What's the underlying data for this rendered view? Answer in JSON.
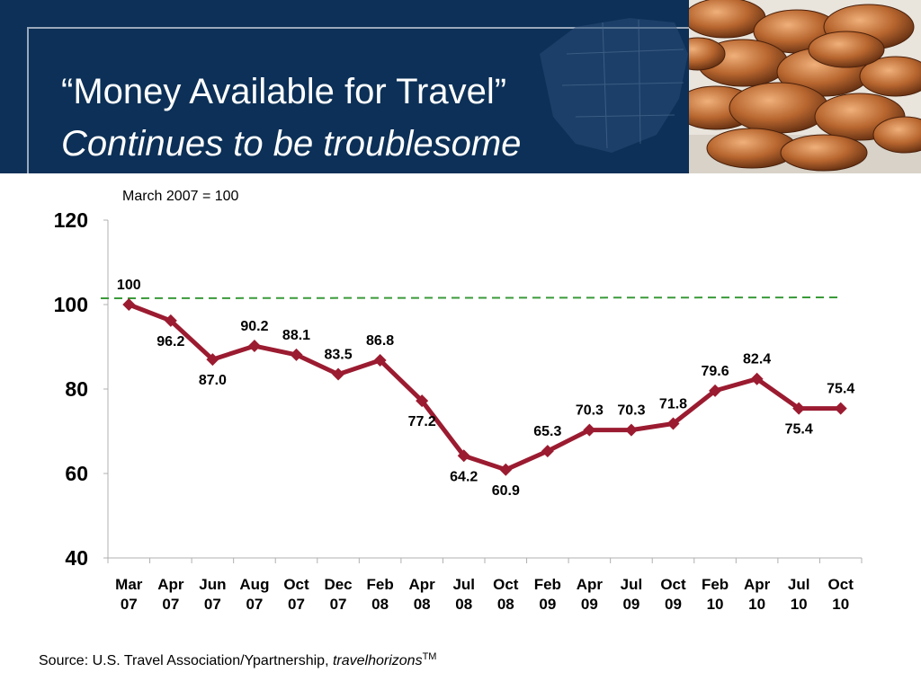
{
  "header": {
    "title_line1": "“Money Available for Travel”",
    "title_line2": "Continues to be troublesome"
  },
  "chart_data": {
    "type": "line",
    "note": "March 2007 = 100",
    "categories": [
      [
        "Mar",
        "07"
      ],
      [
        "Apr",
        "07"
      ],
      [
        "Jun",
        "07"
      ],
      [
        "Aug",
        "07"
      ],
      [
        "Oct",
        "07"
      ],
      [
        "Dec",
        "07"
      ],
      [
        "Feb",
        "08"
      ],
      [
        "Apr",
        "08"
      ],
      [
        "Jul",
        "08"
      ],
      [
        "Oct",
        "08"
      ],
      [
        "Feb",
        "09"
      ],
      [
        "Apr",
        "09"
      ],
      [
        "Jul",
        "09"
      ],
      [
        "Oct",
        "09"
      ],
      [
        "Feb",
        "10"
      ],
      [
        "Apr",
        "10"
      ],
      [
        "Jul",
        "10"
      ],
      [
        "Oct",
        "10"
      ]
    ],
    "values": [
      100,
      96.2,
      87.0,
      90.2,
      88.1,
      83.5,
      86.8,
      77.2,
      64.2,
      60.9,
      65.3,
      70.3,
      70.3,
      71.8,
      79.6,
      82.4,
      75.4,
      75.4
    ],
    "data_labels": [
      "100",
      "96.2",
      "87.0",
      "90.2",
      "88.1",
      "83.5",
      "86.8",
      "77.2",
      "64.2",
      "60.9",
      "65.3",
      "70.3",
      "70.3",
      "71.8",
      "79.6",
      "82.4",
      "75.4",
      "75.4"
    ],
    "label_positions": [
      "above",
      "below",
      "below",
      "above",
      "above",
      "above",
      "above",
      "below",
      "below",
      "below",
      "above",
      "above",
      "above",
      "above",
      "above",
      "above",
      "below",
      "above"
    ],
    "ylim": [
      40,
      120
    ],
    "yticks": [
      40,
      60,
      80,
      100,
      120
    ],
    "reference_line": 100,
    "xlabel": "",
    "ylabel": "",
    "grid": false,
    "colors": {
      "line": "#9b1b30",
      "reference": "#3a9a3a"
    }
  },
  "source": {
    "prefix": "Source:  U.S. Travel Association/Ypartnership, ",
    "brand": "travelhorizons",
    "mark": "TM"
  }
}
